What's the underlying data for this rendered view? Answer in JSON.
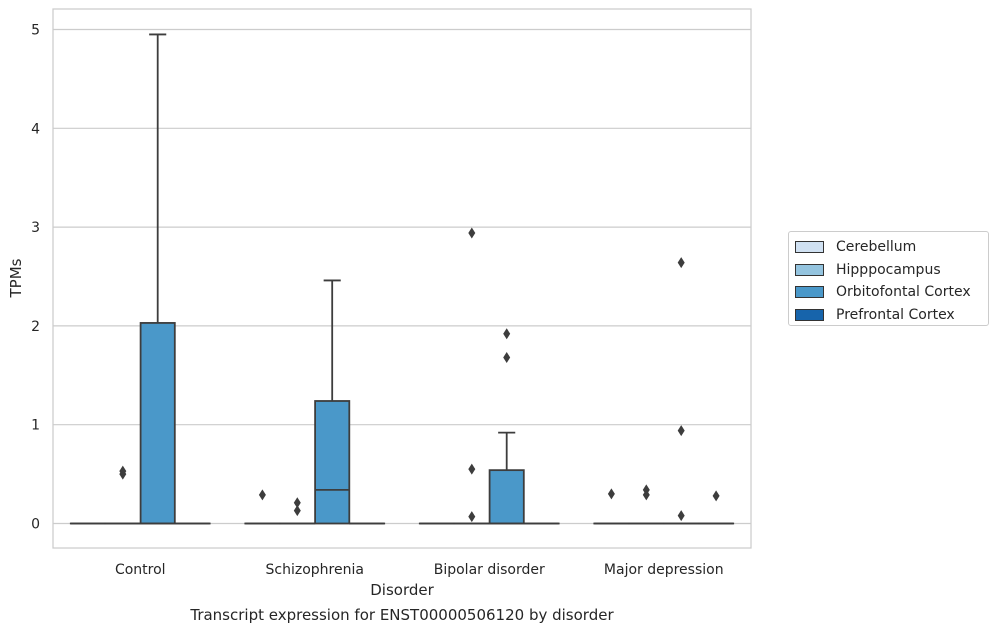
{
  "chart_data": {
    "type": "box",
    "title": "",
    "caption": "Transcript expression for ENST00000506120 by disorder",
    "xlabel": "Disorder",
    "ylabel": "TPMs",
    "ylim": [
      -0.24,
      5.21
    ],
    "yticks": [
      0,
      1,
      2,
      3,
      4,
      5
    ],
    "grid": "horizontal",
    "legend_position": "right",
    "categories": [
      "Control",
      "Schizophrenia",
      "Bipolar disorder",
      "Major depression"
    ],
    "series": [
      {
        "name": "Cerebellum",
        "color": "#d0e1f2",
        "boxes": [
          {
            "min": 0,
            "q1": 0,
            "median": 0,
            "q3": 0,
            "max": 0,
            "outliers": []
          },
          {
            "min": 0,
            "q1": 0,
            "median": 0,
            "q3": 0,
            "max": 0,
            "outliers": [
              0.29
            ]
          },
          {
            "min": 0,
            "q1": 0,
            "median": 0,
            "q3": 0,
            "max": 0,
            "outliers": []
          },
          {
            "min": 0,
            "q1": 0,
            "median": 0,
            "q3": 0,
            "max": 0,
            "outliers": [
              0.3
            ]
          }
        ]
      },
      {
        "name": "Hipppocampus",
        "color": "#94c4df",
        "boxes": [
          {
            "min": 0,
            "q1": 0,
            "median": 0,
            "q3": 0,
            "max": 0,
            "outliers": [
              0.5,
              0.53
            ]
          },
          {
            "min": 0,
            "q1": 0,
            "median": 0,
            "q3": 0,
            "max": 0,
            "outliers": [
              0.13,
              0.21
            ]
          },
          {
            "min": 0,
            "q1": 0,
            "median": 0,
            "q3": 0,
            "max": 0,
            "outliers": [
              2.94,
              0.55,
              0.07
            ]
          },
          {
            "min": 0,
            "q1": 0,
            "median": 0,
            "q3": 0,
            "max": 0,
            "outliers": [
              0.29,
              0.34
            ]
          }
        ]
      },
      {
        "name": "Orbitofontal Cortex",
        "color": "#4a98c9",
        "boxes": [
          {
            "min": 0,
            "q1": 0,
            "median": 0,
            "q3": 2.03,
            "max": 4.95,
            "outliers": []
          },
          {
            "min": 0,
            "q1": 0,
            "median": 0.34,
            "q3": 1.24,
            "max": 2.46,
            "outliers": []
          },
          {
            "min": 0,
            "q1": 0,
            "median": 0,
            "q3": 0.54,
            "max": 0.92,
            "outliers": [
              1.92,
              1.68
            ]
          },
          {
            "min": 0,
            "q1": 0,
            "median": 0,
            "q3": 0,
            "max": 0,
            "outliers": [
              2.64,
              0.94,
              0.08
            ]
          }
        ]
      },
      {
        "name": "Prefrontal Cortex",
        "color": "#1764ab",
        "boxes": [
          {
            "min": 0,
            "q1": 0,
            "median": 0,
            "q3": 0,
            "max": 0,
            "outliers": []
          },
          {
            "min": 0,
            "q1": 0,
            "median": 0,
            "q3": 0,
            "max": 0,
            "outliers": []
          },
          {
            "min": 0,
            "q1": 0,
            "median": 0,
            "q3": 0,
            "max": 0,
            "outliers": []
          },
          {
            "min": 0,
            "q1": 0,
            "median": 0,
            "q3": 0,
            "max": 0,
            "outliers": [
              0.28
            ]
          }
        ]
      }
    ]
  }
}
